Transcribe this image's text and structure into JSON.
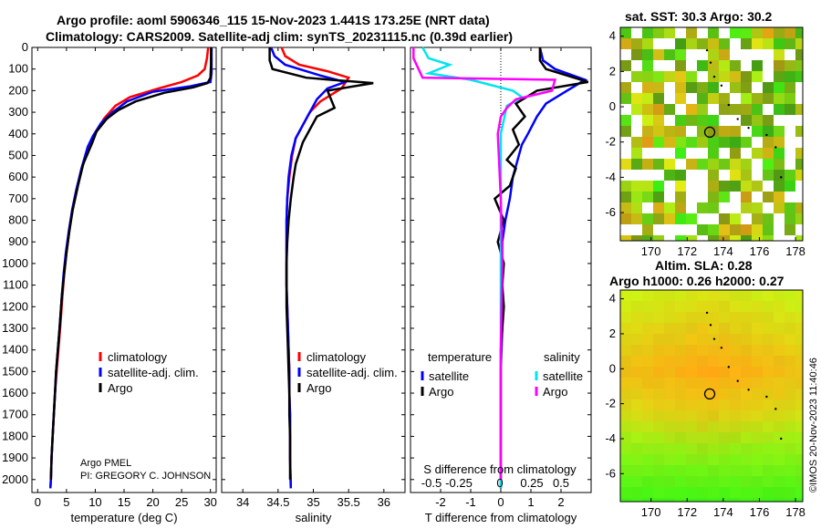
{
  "header": {
    "line1": "Argo profile: aoml 5906346_115 15-Nov-2023 1.441S 173.25E (NRT data)",
    "line2": "Climatology: CARS2009. Satellite-adj clim: synTS_20231115.nc (0.39d earlier)"
  },
  "side_stamp": "©IMOS 20-Nov-2023 11:40:46",
  "colors": {
    "climatology": "#ff0000",
    "satellite": "#0000ff",
    "argo": "#000000",
    "sal_satellite": "#00e5ee",
    "sal_argo": "#ff00ff"
  },
  "chart_data": [
    {
      "type": "line",
      "id": "temperature",
      "xlabel": "temperature (deg C)",
      "ylabel": "",
      "xlim": [
        -1,
        31
      ],
      "ylim": [
        2060,
        0
      ],
      "xticks": [
        0,
        5,
        10,
        15,
        20,
        25,
        30
      ],
      "yticks": [
        0,
        100,
        200,
        300,
        400,
        500,
        600,
        700,
        800,
        900,
        1000,
        1100,
        1200,
        1300,
        1400,
        1500,
        1600,
        1700,
        1800,
        1900,
        2000
      ],
      "legend": [
        "climatology",
        "satellite-adj. clim.",
        "Argo"
      ],
      "legend_position": "bottom-center",
      "annotation": [
        "Argo PMEL",
        "PI: GREGORY C. JOHNSON"
      ],
      "series": [
        {
          "name": "climatology",
          "color": "#ff0000",
          "x": [
            29.6,
            29.4,
            29.0,
            27.8,
            25.0,
            21.0,
            16.0,
            13.5,
            11.5,
            10.0,
            9.0,
            7.8,
            6.8,
            6.0,
            5.5,
            5.0,
            4.6,
            4.3,
            3.9,
            3.6,
            3.3,
            3.0,
            2.8,
            2.6,
            2.4,
            2.3,
            2.2
          ],
          "y": [
            0,
            50,
            100,
            130,
            160,
            190,
            230,
            270,
            330,
            400,
            450,
            550,
            650,
            750,
            850,
            950,
            1050,
            1150,
            1300,
            1400,
            1500,
            1600,
            1700,
            1800,
            1900,
            2000,
            2040
          ]
        },
        {
          "name": "satellite-adj. clim.",
          "color": "#0000ff",
          "x": [
            30.2,
            30.2,
            30.2,
            30.0,
            26.5,
            20.0,
            15.5,
            13.0,
            11.0,
            9.6,
            8.7,
            7.6,
            6.7,
            6.0,
            5.4,
            4.9,
            4.5,
            4.2,
            3.8,
            3.5,
            3.2,
            3.0,
            2.8,
            2.6,
            2.4,
            2.3,
            2.2
          ],
          "y": [
            0,
            60,
            120,
            160,
            180,
            205,
            250,
            300,
            350,
            410,
            460,
            560,
            660,
            750,
            850,
            950,
            1050,
            1150,
            1300,
            1400,
            1500,
            1600,
            1700,
            1800,
            1900,
            2000,
            2040
          ]
        },
        {
          "name": "Argo",
          "color": "#000000",
          "x": [
            30.1,
            30.1,
            30.0,
            29.5,
            27.0,
            22.0,
            17.0,
            14.0,
            12.0,
            10.2,
            9.5,
            7.9,
            7.0,
            6.1,
            5.5,
            5.0,
            4.6,
            4.2,
            3.8,
            3.5,
            3.2,
            3.0,
            2.8,
            2.6,
            2.4,
            2.3
          ],
          "y": [
            0,
            80,
            140,
            165,
            185,
            210,
            250,
            290,
            330,
            390,
            440,
            540,
            640,
            750,
            850,
            950,
            1050,
            1150,
            1300,
            1400,
            1500,
            1600,
            1700,
            1800,
            1900,
            2000
          ]
        }
      ]
    },
    {
      "type": "line",
      "id": "salinity",
      "xlabel": "salinity",
      "xlim": [
        33.7,
        36.3
      ],
      "ylim": [
        2060,
        0
      ],
      "xticks": [
        34,
        34.5,
        35,
        35.5,
        36
      ],
      "legend": [
        "climatology",
        "satellite-adj. clim.",
        "Argo"
      ],
      "legend_position": "bottom-center",
      "series": [
        {
          "name": "climatology",
          "color": "#ff0000",
          "x": [
            34.55,
            34.6,
            34.8,
            35.2,
            35.5,
            35.4,
            35.1,
            34.95,
            34.85,
            34.75,
            34.7,
            34.66,
            34.63,
            34.62,
            34.62,
            34.62,
            34.62,
            34.63,
            34.64,
            34.65,
            34.66,
            34.66,
            34.67,
            34.67,
            34.67,
            34.68
          ],
          "y": [
            0,
            40,
            80,
            110,
            140,
            190,
            250,
            300,
            360,
            420,
            500,
            600,
            700,
            800,
            900,
            1000,
            1100,
            1200,
            1300,
            1400,
            1500,
            1600,
            1700,
            1800,
            1900,
            2040
          ]
        },
        {
          "name": "satellite-adj. clim.",
          "color": "#0000ff",
          "x": [
            34.4,
            34.45,
            34.6,
            35.1,
            35.45,
            35.2,
            35.05,
            34.95,
            34.85,
            34.75,
            34.69,
            34.65,
            34.63,
            34.62,
            34.62,
            34.62,
            34.62,
            34.63,
            34.64,
            34.65,
            34.66,
            34.66,
            34.67,
            34.67,
            34.67,
            34.68
          ],
          "y": [
            0,
            40,
            80,
            130,
            160,
            190,
            240,
            300,
            360,
            420,
            500,
            600,
            700,
            800,
            900,
            1000,
            1100,
            1200,
            1300,
            1400,
            1500,
            1600,
            1700,
            1800,
            1900,
            2040
          ]
        },
        {
          "name": "Argo",
          "color": "#000000",
          "x": [
            34.38,
            34.38,
            34.42,
            34.9,
            35.25,
            35.85,
            35.2,
            35.3,
            35.05,
            34.95,
            34.85,
            34.75,
            34.72,
            34.68,
            34.65,
            34.63,
            34.62,
            34.62,
            34.62,
            34.63,
            34.64,
            34.65,
            34.66,
            34.66,
            34.67,
            34.67
          ],
          "y": [
            0,
            60,
            100,
            140,
            150,
            165,
            200,
            280,
            320,
            380,
            440,
            540,
            600,
            700,
            800,
            900,
            1000,
            1100,
            1200,
            1300,
            1400,
            1500,
            1600,
            1700,
            1800,
            2000
          ]
        }
      ]
    },
    {
      "type": "line",
      "id": "difference",
      "xlabel": "T difference from climatology",
      "xlabel_top": "S difference from climatology",
      "xlim": [
        -3,
        3
      ],
      "ylim": [
        2060,
        0
      ],
      "xticks": [
        -2,
        -1,
        0,
        1,
        2
      ],
      "xticks_S": [
        "-0.5",
        "-0.25",
        "0",
        "0.25",
        "0.5"
      ],
      "legend_temperature": "temperature",
      "legend_salinity": "salinity",
      "legend_entries_left": [
        "satellite",
        "Argo"
      ],
      "legend_entries_right": [
        "satellite",
        "Argo"
      ],
      "series": [
        {
          "name": "temperature satellite",
          "color": "#0000ff",
          "x": [
            1.3,
            1.4,
            1.8,
            2.8,
            2.2,
            1.5,
            1.2,
            0.9,
            0.7,
            0.6,
            0.5,
            0.4,
            0.3,
            0.15,
            0.05,
            0.05,
            0.05,
            0.0,
            0.0,
            0.0,
            0.0
          ],
          "y": [
            0,
            60,
            100,
            150,
            200,
            260,
            320,
            400,
            450,
            500,
            550,
            600,
            700,
            800,
            900,
            1100,
            1300,
            1500,
            1700,
            1900,
            2040
          ]
        },
        {
          "name": "temperature Argo",
          "color": "#000000",
          "x": [
            1.3,
            1.3,
            1.5,
            2.9,
            1.2,
            0.5,
            0.8,
            0.4,
            0.6,
            0.2,
            0.5,
            0.3,
            -0.2,
            0.1,
            -0.1,
            0.1,
            0.05,
            0.1,
            0.0,
            0.0,
            0.0
          ],
          "y": [
            0,
            60,
            100,
            160,
            200,
            260,
            320,
            380,
            450,
            520,
            560,
            640,
            700,
            800,
            900,
            1000,
            1100,
            1200,
            1400,
            1700,
            2000
          ]
        },
        {
          "name": "salinity satellite",
          "color": "#00e5ee",
          "x": [
            -2.6,
            -2.4,
            -1.7,
            -2.4,
            -1.0,
            0.4,
            0.7,
            0.2,
            0.0,
            0.0,
            0.0,
            0.0,
            0.0,
            0.0
          ],
          "y": [
            0,
            50,
            80,
            120,
            150,
            200,
            230,
            270,
            400,
            700,
            1000,
            1400,
            1800,
            2040
          ]
        },
        {
          "name": "salinity Argo",
          "color": "#ff00ff",
          "x": [
            -2.9,
            -2.9,
            -2.6,
            1.8,
            1.7,
            0.5,
            0.2,
            0.0,
            -0.1,
            0.0,
            0.05,
            0.0,
            0.0,
            0.0
          ],
          "y": [
            0,
            50,
            140,
            150,
            200,
            240,
            280,
            320,
            400,
            700,
            1000,
            1400,
            1800,
            2000
          ]
        }
      ]
    },
    {
      "type": "heatmap",
      "id": "sst_map",
      "title": "sat. SST: 30.3 Argo: 30.2",
      "xlim": [
        168.3,
        178.4
      ],
      "ylim": [
        -7.6,
        4.5
      ],
      "xticks": [
        170,
        172,
        174,
        176,
        178
      ],
      "yticks": [
        4,
        2,
        0,
        -2,
        -4,
        -6
      ],
      "marker": {
        "lon": 173.25,
        "lat": -1.441
      }
    },
    {
      "type": "heatmap",
      "id": "sla_map",
      "title_line1": "Altim. SLA: 0.28",
      "title_line2": "Argo h1000: 0.26 h2000: 0.27",
      "xlim": [
        168.3,
        178.4
      ],
      "ylim": [
        -7.6,
        4.5
      ],
      "xticks": [
        170,
        172,
        174,
        176,
        178
      ],
      "yticks": [
        4,
        2,
        0,
        -2,
        -4,
        -6
      ],
      "marker": {
        "lon": 173.25,
        "lat": -1.441
      }
    }
  ],
  "panel_labels": {
    "t_legend": [
      "climatology",
      "satellite-adj. clim.",
      "Argo"
    ],
    "s_legend": [
      "climatology",
      "satellite-adj. clim.",
      "Argo"
    ]
  }
}
